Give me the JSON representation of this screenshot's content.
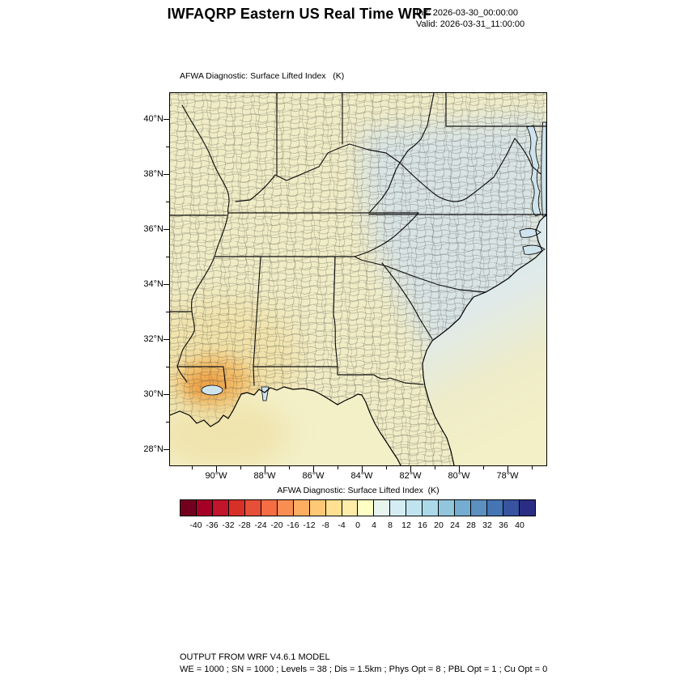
{
  "header": {
    "title": "IWFAQRP Eastern US Real Time WRF",
    "init_line": "Init: 2026-03-30_00:00:00",
    "valid_line": "Valid: 2026-03-31_11:00:00"
  },
  "map": {
    "subtitle": "AFWA Diagnostic: Surface Lifted Index   (K)",
    "lat_ticks": [
      "40°N",
      "38°N",
      "36°N",
      "34°N",
      "32°N",
      "30°N",
      "28°N"
    ],
    "lon_ticks": [
      "90°W",
      "88°W",
      "86°W",
      "84°W",
      "82°W",
      "80°W",
      "78°W"
    ]
  },
  "colorbar": {
    "title": "AFWA Diagnostic: Surface Lifted Index  (K)",
    "units": "K",
    "tick_labels": [
      "-40",
      "-36",
      "-32",
      "-28",
      "-24",
      "-20",
      "-16",
      "-12",
      "-8",
      "-4",
      "0",
      "4",
      "8",
      "12",
      "16",
      "20",
      "24",
      "28",
      "32",
      "36",
      "40"
    ],
    "colors": [
      "#74001f",
      "#a50026",
      "#c0152a",
      "#d73027",
      "#e65038",
      "#f46d43",
      "#f88e52",
      "#fdae61",
      "#fec877",
      "#fee090",
      "#feeda9",
      "#fdffc5",
      "#e7f5ee",
      "#d3edf3",
      "#c0e4ef",
      "#abd9e9",
      "#91c6dd",
      "#74add1",
      "#5b90c1",
      "#4575b4",
      "#38539f",
      "#2b2d84"
    ]
  },
  "footer": {
    "line1": "OUTPUT FROM WRF V4.6.1 MODEL",
    "line2": "WE = 1000 ; SN = 1000 ; Levels = 38 ; Dis = 1.5km ; Phys Opt = 8 ; PBL Opt = 1 ; Cu Opt = 0"
  },
  "chart_data": {
    "type": "heatmap",
    "title": "AFWA Diagnostic: Surface Lifted Index (K)",
    "colorbar_values": [
      -40,
      -36,
      -32,
      -28,
      -24,
      -20,
      -16,
      -12,
      -8,
      -4,
      0,
      4,
      8,
      12,
      16,
      20,
      24,
      28,
      32,
      36,
      40
    ],
    "lat_ticks_deg_n": [
      40,
      38,
      36,
      34,
      32,
      30,
      28
    ],
    "lon_ticks_deg_w": [
      90,
      88,
      86,
      84,
      82,
      80,
      78
    ],
    "field_summary": "Lifted index near -4 to 0 K (pale yellow) over the western half of the domain, 0 to +8 K (pale blue) over Virginia/Carolinas/Georgia, locally -8 to -16 K (orange) over southern Louisiana"
  }
}
